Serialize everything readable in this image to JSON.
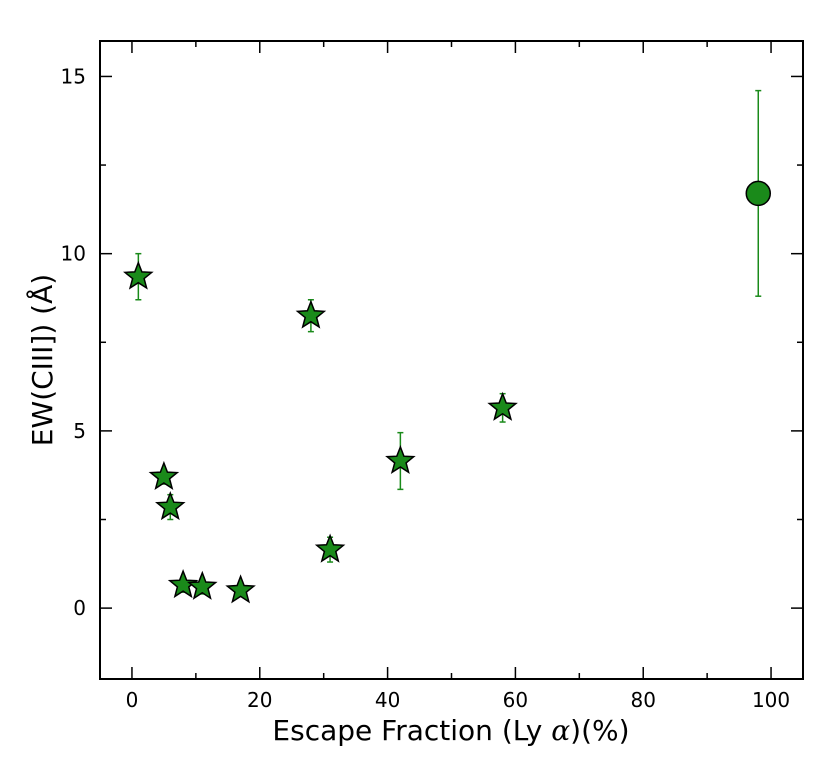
{
  "chart_data": {
    "type": "scatter",
    "xlabel_prefix": "Escape Fraction (Ly ",
    "xlabel_symbol": "α",
    "xlabel_suffix": ")(%)",
    "ylabel": "EW(CIII]) (Å)",
    "xlim": [
      -5,
      105
    ],
    "ylim": [
      -2,
      16
    ],
    "xticks": [
      0,
      20,
      40,
      60,
      80,
      100
    ],
    "yticks": [
      0,
      5,
      10,
      15
    ],
    "grid": false,
    "color": "#1a8a1a",
    "stars": [
      {
        "x": 1,
        "y": 9.35,
        "err": 0.65
      },
      {
        "x": 5,
        "y": 3.7,
        "err": 0.2
      },
      {
        "x": 6,
        "y": 2.85,
        "err": 0.35
      },
      {
        "x": 8,
        "y": 0.65,
        "err": 0.2
      },
      {
        "x": 11,
        "y": 0.6,
        "err": 0.2
      },
      {
        "x": 17,
        "y": 0.5,
        "err": 0.15
      },
      {
        "x": 28,
        "y": 8.25,
        "err": 0.45
      },
      {
        "x": 31,
        "y": 1.65,
        "err": 0.35
      },
      {
        "x": 42,
        "y": 4.15,
        "err": 0.8
      },
      {
        "x": 58,
        "y": 5.65,
        "err": 0.4
      }
    ],
    "circles": [
      {
        "x": 98,
        "y": 11.7,
        "err": 2.9
      }
    ]
  }
}
